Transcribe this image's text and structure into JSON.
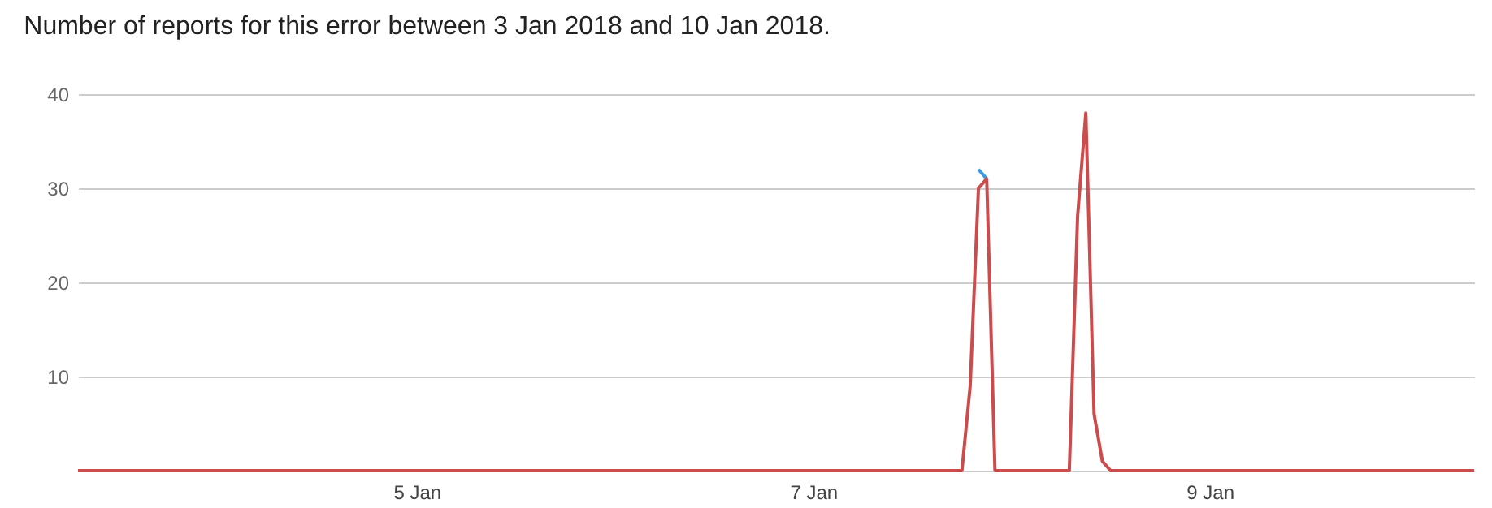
{
  "chart_data": {
    "type": "line",
    "title": "Number of reports for this error between 3 Jan 2018 and 10 Jan 2018.",
    "series": [
      {
        "color": "#3e9be0",
        "x": [
          "2018-01-07T20:00",
          "2018-01-07T21:00"
        ],
        "values": [
          32,
          31
        ]
      },
      {
        "color": "#cc4b4c",
        "x": [
          "2018-01-03T07:00",
          "2018-01-07T18:00",
          "2018-01-07T19:00",
          "2018-01-07T20:00",
          "2018-01-07T21:00",
          "2018-01-07T22:00",
          "2018-01-08T07:00",
          "2018-01-08T08:00",
          "2018-01-08T09:00",
          "2018-01-08T10:00",
          "2018-01-08T11:00",
          "2018-01-08T12:00",
          "2018-01-10T08:00"
        ],
        "values": [
          0,
          0,
          9,
          30,
          31,
          0,
          0,
          27,
          38,
          6,
          1,
          0,
          0
        ]
      }
    ],
    "xlim": [
      "2018-01-03T07:00",
      "2018-01-10T08:00"
    ],
    "xticks": [
      {
        "value": "2018-01-05",
        "label": "5 Jan"
      },
      {
        "value": "2018-01-07",
        "label": "7 Jan"
      },
      {
        "value": "2018-01-09",
        "label": "9 Jan"
      }
    ],
    "ylim": [
      0,
      40
    ],
    "yticks": [
      {
        "value": 0,
        "label": null
      },
      10,
      20,
      30,
      40
    ],
    "grid": "y",
    "marker": "none",
    "line_style": "solid"
  }
}
